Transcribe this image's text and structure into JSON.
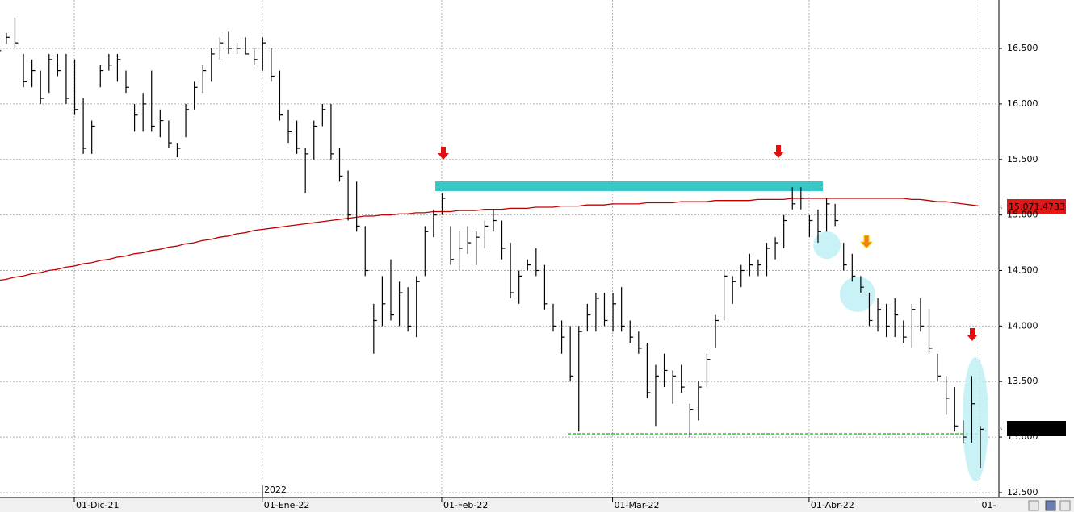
{
  "chart_data": {
    "type": "ohlc",
    "color": "#000000",
    "categories": [
      null,
      null,
      null,
      null,
      null,
      null,
      null,
      null,
      null,
      "01-Dic-21",
      null,
      null,
      null,
      null,
      null,
      null,
      null,
      null,
      null,
      null,
      null,
      null,
      null,
      null,
      null,
      null,
      null,
      null,
      null,
      null,
      null,
      "01-Ene-22",
      null,
      null,
      null,
      null,
      null,
      null,
      null,
      null,
      null,
      null,
      null,
      null,
      null,
      null,
      null,
      null,
      null,
      null,
      null,
      null,
      "01-Feb-22",
      null,
      null,
      null,
      null,
      null,
      null,
      null,
      null,
      null,
      null,
      null,
      null,
      null,
      null,
      null,
      null,
      null,
      null,
      null,
      "01-Mar-22",
      null,
      null,
      null,
      null,
      null,
      null,
      null,
      null,
      null,
      null,
      null,
      null,
      null,
      null,
      null,
      null,
      null,
      null,
      null,
      null,
      null,
      null,
      "01-Abr-22",
      null,
      null,
      null,
      null,
      null,
      null,
      null,
      null,
      null,
      null,
      null,
      null,
      null,
      null,
      null,
      null,
      null,
      null,
      null,
      "01-"
    ],
    "high": [
      16.51,
      16.64,
      16.78,
      16.45,
      16.4,
      16.3,
      16.45,
      16.45,
      16.45,
      16.4,
      16.05,
      15.85,
      16.35,
      16.45,
      16.45,
      16.3,
      16.0,
      16.1,
      16.3,
      15.95,
      15.85,
      15.65,
      16.0,
      16.2,
      16.35,
      16.5,
      16.6,
      16.65,
      16.55,
      16.6,
      16.5,
      16.6,
      16.5,
      16.3,
      15.95,
      15.85,
      15.6,
      15.85,
      16.0,
      16.0,
      15.6,
      15.4,
      15.3,
      14.9,
      14.2,
      14.45,
      14.6,
      14.4,
      14.35,
      14.45,
      14.9,
      15.05,
      15.2,
      14.9,
      14.85,
      14.9,
      14.85,
      14.95,
      15.05,
      14.95,
      14.75,
      14.5,
      14.6,
      14.7,
      14.55,
      14.2,
      14.05,
      14.0,
      14.0,
      14.2,
      14.3,
      14.3,
      14.3,
      14.35,
      14.05,
      13.95,
      13.85,
      13.65,
      13.75,
      13.6,
      13.65,
      13.3,
      13.5,
      13.75,
      14.1,
      14.5,
      14.45,
      14.55,
      14.65,
      14.6,
      14.75,
      14.8,
      15.0,
      15.25,
      15.25,
      15.0,
      15.05,
      15.15,
      15.1,
      14.75,
      14.65,
      14.45,
      14.3,
      14.25,
      14.2,
      14.25,
      14.05,
      14.2,
      14.25,
      14.15,
      13.75,
      13.55,
      13.45,
      13.15,
      13.55,
      13.1
    ],
    "low": [
      16.41,
      16.54,
      16.5,
      16.15,
      16.15,
      16.0,
      16.1,
      16.25,
      16.0,
      15.9,
      15.55,
      15.55,
      16.15,
      16.3,
      16.2,
      16.1,
      15.75,
      15.75,
      15.75,
      15.7,
      15.6,
      15.52,
      15.7,
      15.95,
      16.1,
      16.2,
      16.4,
      16.45,
      16.45,
      16.45,
      16.35,
      16.3,
      16.2,
      15.85,
      15.65,
      15.55,
      15.2,
      15.5,
      15.8,
      15.5,
      15.3,
      14.95,
      14.85,
      14.45,
      13.75,
      14.0,
      14.05,
      14.0,
      13.95,
      13.9,
      14.45,
      14.8,
      15.0,
      14.55,
      14.5,
      14.65,
      14.55,
      14.7,
      14.85,
      14.6,
      14.25,
      14.2,
      14.5,
      14.45,
      14.15,
      13.95,
      13.75,
      13.5,
      13.05,
      13.95,
      13.95,
      14.0,
      13.95,
      13.95,
      13.85,
      13.75,
      13.35,
      13.1,
      13.45,
      13.3,
      13.4,
      13.0,
      13.15,
      13.45,
      13.8,
      14.05,
      14.2,
      14.35,
      14.45,
      14.45,
      14.45,
      14.6,
      14.7,
      15.05,
      15.05,
      14.8,
      14.75,
      14.85,
      14.9,
      14.5,
      14.4,
      14.3,
      14.0,
      13.95,
      13.9,
      13.9,
      13.85,
      13.8,
      13.95,
      13.75,
      13.5,
      13.2,
      13.05,
      12.95,
      12.95,
      12.72
    ],
    "close": [
      16.48,
      16.6,
      16.55,
      16.2,
      16.3,
      16.05,
      16.4,
      16.3,
      16.05,
      15.95,
      15.6,
      15.8,
      16.3,
      16.35,
      16.4,
      16.15,
      15.9,
      16.0,
      15.8,
      15.85,
      15.65,
      15.6,
      15.95,
      16.15,
      16.3,
      16.45,
      16.55,
      16.5,
      16.5,
      16.45,
      16.4,
      16.55,
      16.25,
      15.9,
      15.75,
      15.6,
      15.55,
      15.8,
      15.95,
      15.55,
      15.35,
      15.0,
      14.9,
      14.5,
      14.05,
      14.2,
      14.1,
      14.3,
      14.0,
      14.4,
      14.85,
      15.0,
      15.15,
      14.6,
      14.7,
      14.75,
      14.8,
      14.9,
      14.95,
      14.7,
      14.3,
      14.45,
      14.55,
      14.5,
      14.2,
      14.0,
      13.9,
      13.55,
      13.95,
      14.1,
      14.25,
      14.05,
      14.2,
      14.0,
      13.9,
      13.8,
      13.4,
      13.55,
      13.6,
      13.55,
      13.45,
      13.25,
      13.45,
      13.7,
      14.05,
      14.45,
      14.4,
      14.5,
      14.55,
      14.55,
      14.7,
      14.75,
      14.95,
      15.1,
      15.15,
      14.95,
      14.85,
      15.1,
      14.95,
      14.55,
      14.45,
      14.35,
      14.05,
      14.15,
      14.0,
      14.1,
      13.9,
      14.15,
      14.0,
      13.8,
      13.55,
      13.35,
      13.1,
      13.0,
      13.3,
      13.07
    ],
    "moving_average": {
      "color": "#c00000",
      "values": [
        14.41,
        14.42,
        14.44,
        14.45,
        14.47,
        14.48,
        14.5,
        14.51,
        14.53,
        14.54,
        14.56,
        14.57,
        14.59,
        14.6,
        14.62,
        14.63,
        14.65,
        14.66,
        14.68,
        14.69,
        14.71,
        14.72,
        14.74,
        14.75,
        14.77,
        14.78,
        14.8,
        14.81,
        14.83,
        14.84,
        14.86,
        14.87,
        14.88,
        14.89,
        14.9,
        14.91,
        14.92,
        14.93,
        14.94,
        14.95,
        14.96,
        14.97,
        14.98,
        14.99,
        14.99,
        15.0,
        15.0,
        15.01,
        15.01,
        15.02,
        15.02,
        15.03,
        15.03,
        15.03,
        15.04,
        15.04,
        15.04,
        15.05,
        15.05,
        15.05,
        15.06,
        15.06,
        15.06,
        15.07,
        15.07,
        15.07,
        15.08,
        15.08,
        15.08,
        15.09,
        15.09,
        15.09,
        15.1,
        15.1,
        15.1,
        15.1,
        15.11,
        15.11,
        15.11,
        15.11,
        15.12,
        15.12,
        15.12,
        15.12,
        15.13,
        15.13,
        15.13,
        15.13,
        15.13,
        15.14,
        15.14,
        15.14,
        15.14,
        15.15,
        15.15,
        15.15,
        15.15,
        15.15,
        15.15,
        15.15,
        15.15,
        15.15,
        15.15,
        15.15,
        15.15,
        15.15,
        15.15,
        15.14,
        15.14,
        15.13,
        15.12,
        15.12,
        15.11,
        15.1,
        15.09,
        15.08
      ]
    },
    "ylim": [
      12.456,
      16.936
    ],
    "yticks": [
      {
        "value": 12.5,
        "label": "12.500"
      },
      {
        "value": 13,
        "label": "13.000"
      },
      {
        "value": 13.5,
        "label": "13.500"
      },
      {
        "value": 14,
        "label": "14.000"
      },
      {
        "value": 14.5,
        "label": "14.500"
      },
      {
        "value": 15,
        "label": "15.000"
      },
      {
        "value": 15.5,
        "label": "15.500"
      },
      {
        "value": 16,
        "label": "16.000"
      },
      {
        "value": 16.5,
        "label": "16.500"
      }
    ],
    "grid": true,
    "year_label": "2022",
    "last_price_label": "15.071.4733"
  }
}
